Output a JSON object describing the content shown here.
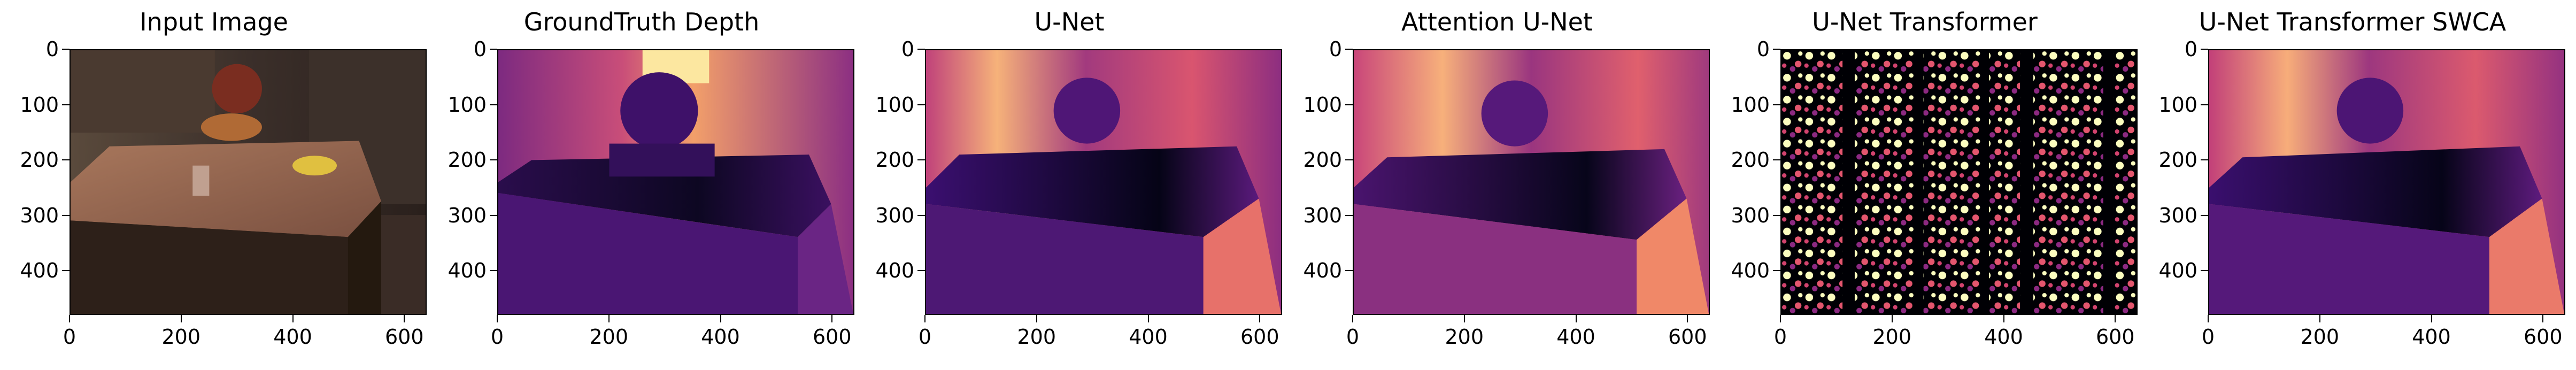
{
  "panels": [
    {
      "title": "Input Image"
    },
    {
      "title": "GroundTruth Depth"
    },
    {
      "title": "U-Net"
    },
    {
      "title": "Attention U-Net"
    },
    {
      "title": "U-Net Transformer"
    },
    {
      "title": "U-Net Transformer SWCA"
    }
  ],
  "axes": {
    "y_ticks": [
      "0",
      "100",
      "200",
      "300",
      "400"
    ],
    "x_ticks": [
      "0",
      "200",
      "400",
      "600"
    ]
  },
  "colormap": "magma",
  "colors": {
    "dark": "#000004",
    "mid": "#b73779",
    "light": "#fcfdbf"
  }
}
